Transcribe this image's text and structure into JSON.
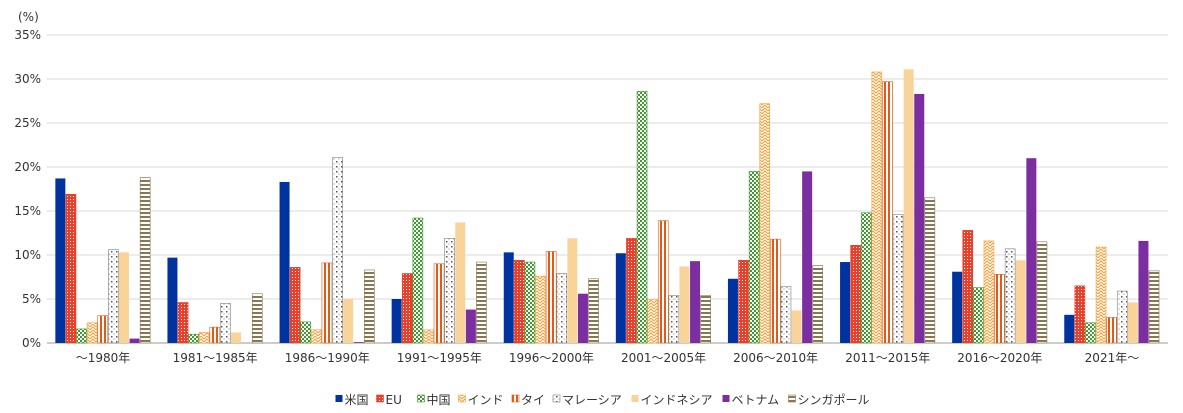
{
  "chart_data": {
    "type": "bar",
    "unit_label": "(%)",
    "categories": [
      "～1980年",
      "1981～1985年",
      "1986～1990年",
      "1991～1995年",
      "1996～2000年",
      "2001～2005年",
      "2006～2010年",
      "2011～2015年",
      "2016～2020年",
      "2021年～"
    ],
    "y_ticks": [
      "0%",
      "5%",
      "10%",
      "15%",
      "20%",
      "25%",
      "30%",
      "35%"
    ],
    "ylim": [
      0,
      35
    ],
    "grid": true,
    "legend_position": "bottom",
    "series": [
      {
        "name": "米国",
        "color": "#0033a0",
        "pattern": "solid",
        "values": [
          18.7,
          9.7,
          18.3,
          5.0,
          10.3,
          10.2,
          7.3,
          9.2,
          8.1,
          3.2
        ]
      },
      {
        "name": "EU",
        "color": "#e8402a",
        "pattern": "dots",
        "values": [
          16.9,
          4.6,
          8.6,
          7.9,
          9.4,
          11.9,
          9.4,
          11.1,
          12.8,
          6.5
        ]
      },
      {
        "name": "中国",
        "color": "#3e9c2e",
        "pattern": "checker",
        "values": [
          1.6,
          1.0,
          2.4,
          14.2,
          9.2,
          28.6,
          19.5,
          14.8,
          6.3,
          2.3
        ]
      },
      {
        "name": "インド",
        "color": "#f5a442",
        "pattern": "zigzag",
        "values": [
          2.3,
          1.2,
          1.5,
          1.5,
          7.6,
          4.9,
          27.2,
          30.8,
          11.6,
          10.9
        ]
      },
      {
        "name": "タイ",
        "color": "#e05a1a",
        "pattern": "vlines",
        "values": [
          3.1,
          1.8,
          9.1,
          9.0,
          10.4,
          13.9,
          11.8,
          29.7,
          7.8,
          2.9
        ]
      },
      {
        "name": "マレーシア",
        "color": "#7f7f7f",
        "pattern": "sparse",
        "values": [
          10.6,
          4.5,
          21.1,
          11.9,
          7.9,
          5.4,
          6.4,
          14.6,
          10.7,
          5.9
        ]
      },
      {
        "name": "インドネシア",
        "color": "#fad39b",
        "pattern": "solid",
        "values": [
          10.3,
          1.2,
          5.0,
          13.7,
          11.9,
          8.7,
          3.7,
          31.1,
          9.4,
          4.6
        ]
      },
      {
        "name": "ベトナム",
        "color": "#7b2ea0",
        "pattern": "solid",
        "values": [
          0.5,
          0.0,
          0.1,
          3.8,
          5.6,
          9.3,
          19.5,
          28.3,
          21.0,
          11.6
        ]
      },
      {
        "name": "シンガポール",
        "color": "#8a7650",
        "pattern": "hlines",
        "values": [
          18.8,
          5.6,
          8.3,
          9.2,
          7.3,
          5.4,
          8.8,
          16.5,
          11.5,
          8.2
        ]
      }
    ]
  }
}
